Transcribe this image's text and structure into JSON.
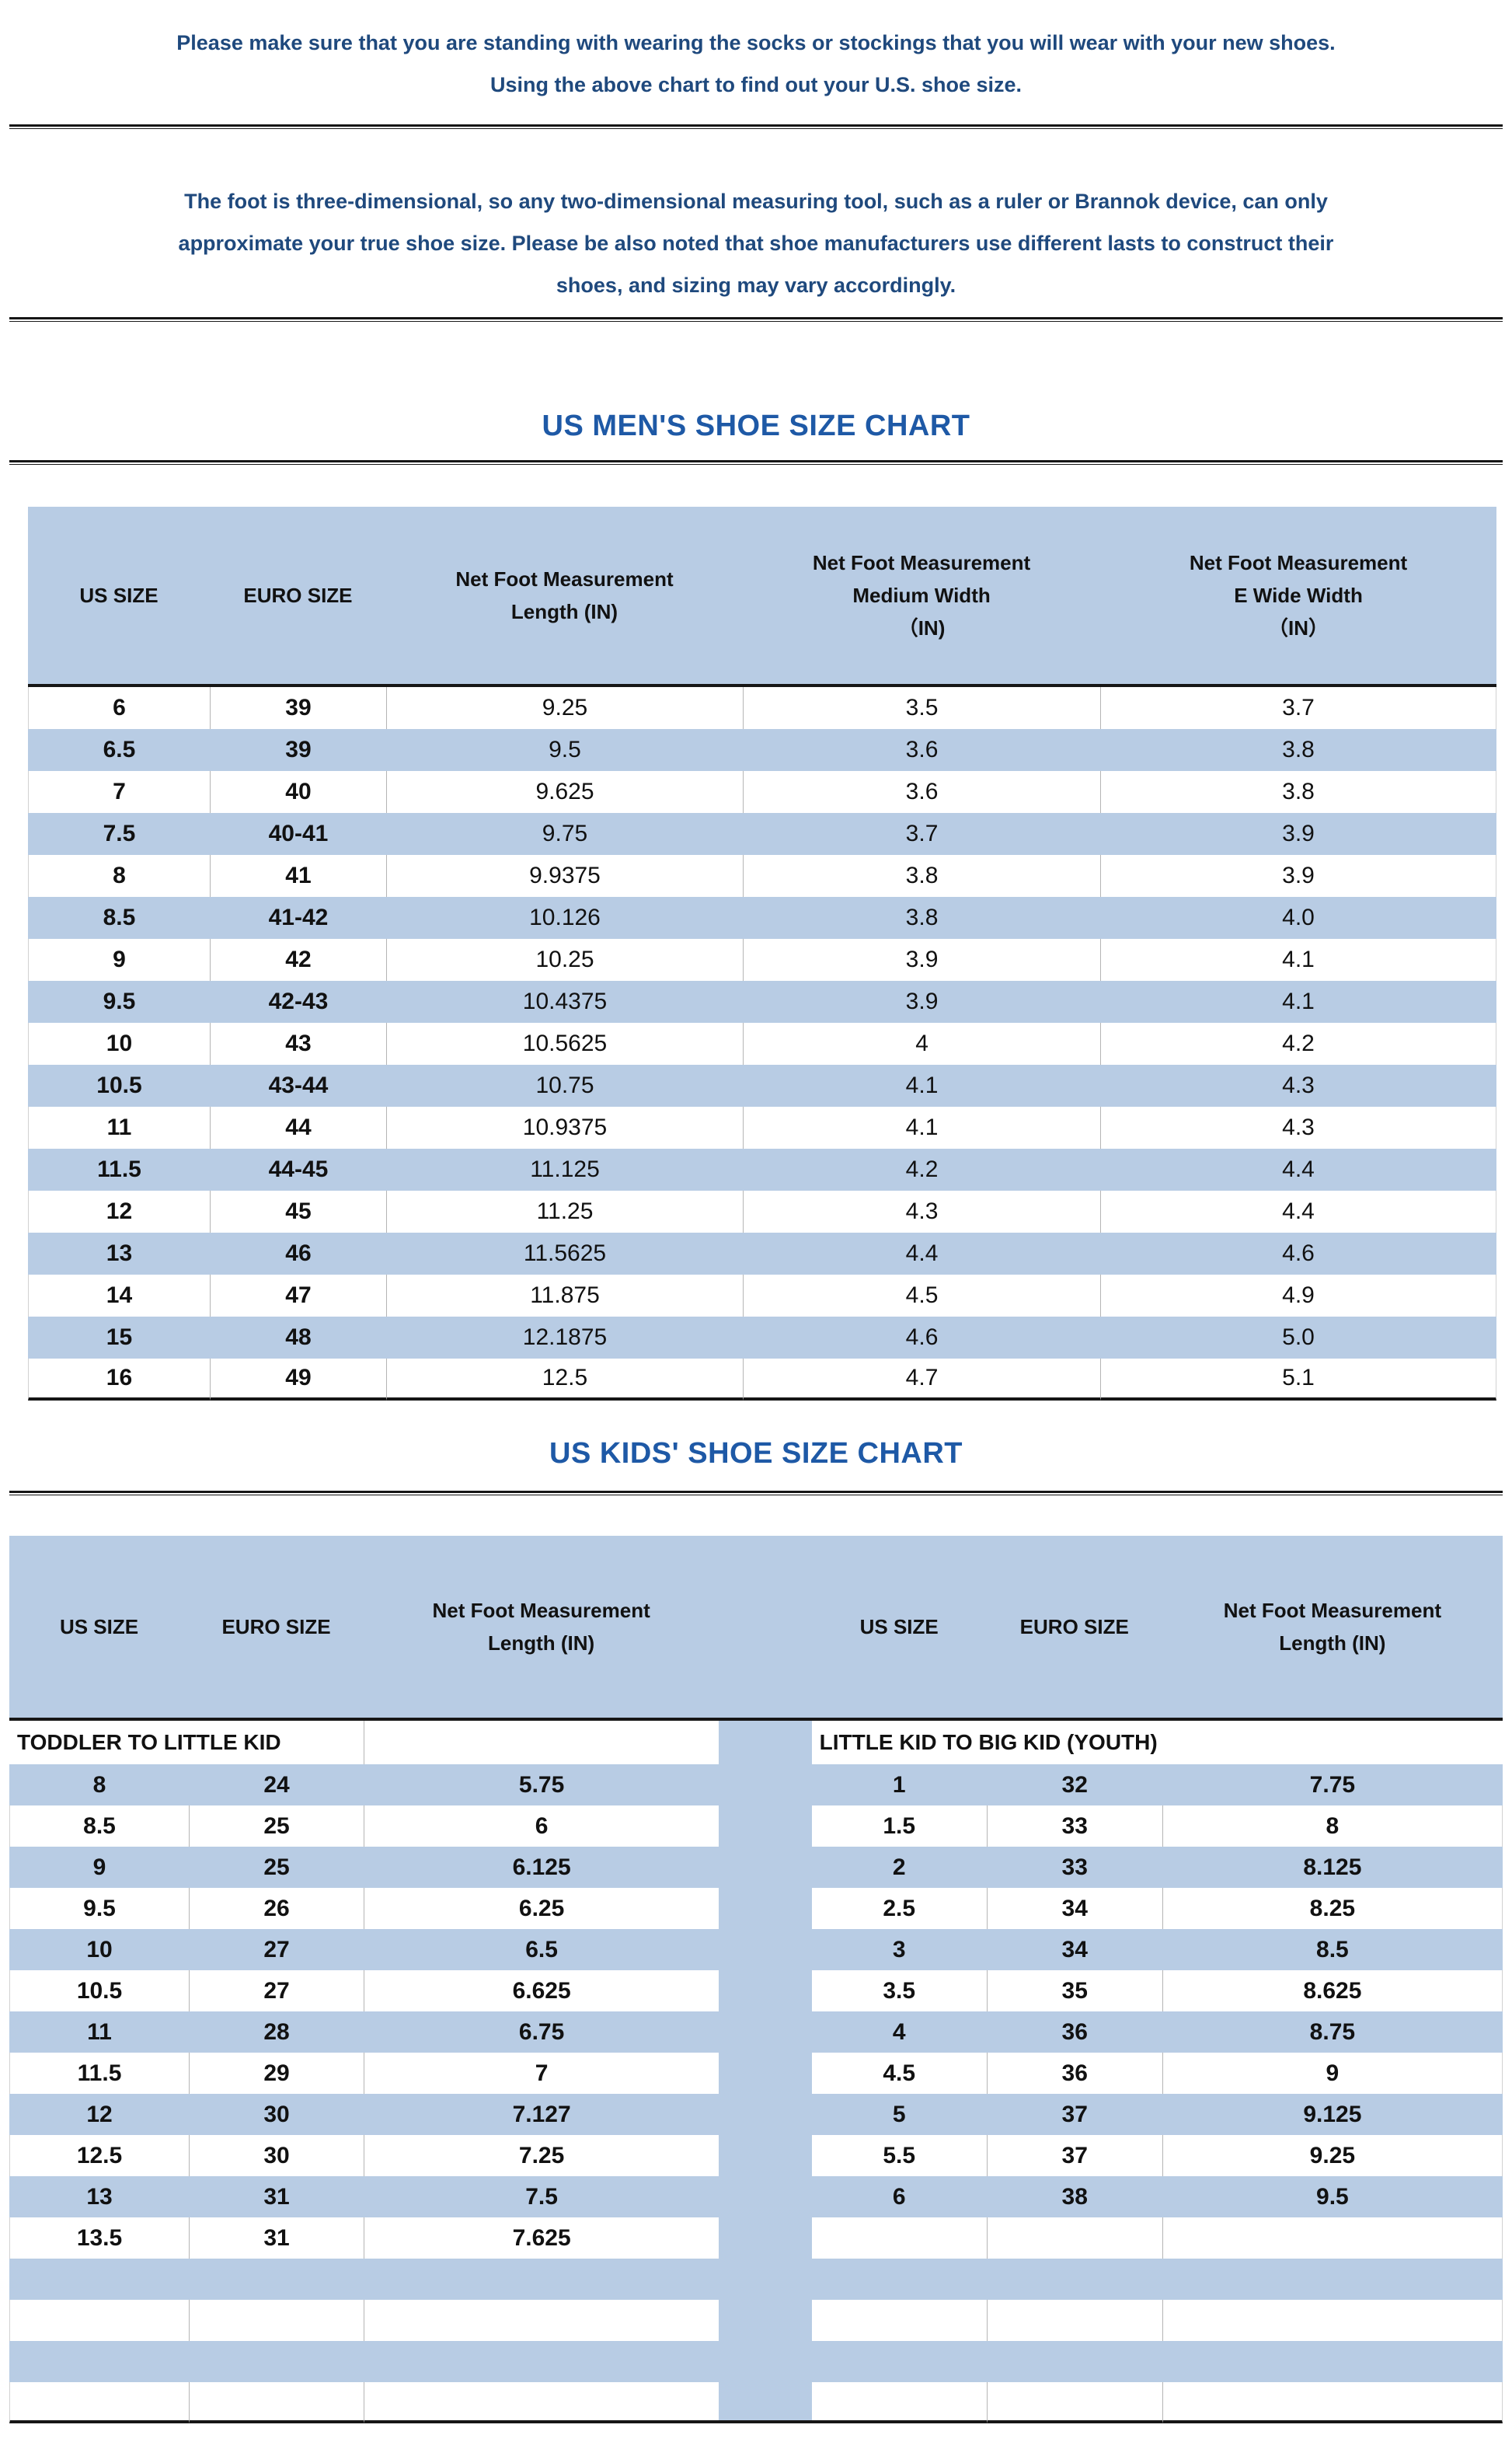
{
  "colors": {
    "text_blue": "#1F497D",
    "title_blue": "#1E59A6",
    "band_blue": "#B8CCE4",
    "border_dark": "#161616"
  },
  "intro": {
    "para1_lines": [
      "Please make sure that you are standing with wearing the socks or stockings that you will wear with your new shoes.",
      "Using the above chart to find out your U.S. shoe size."
    ],
    "para2_lines": [
      "The foot is three-dimensional, so any two-dimensional measuring tool, such as a ruler or Brannok device, can only",
      "approximate your true shoe size. Please be also noted that shoe manufacturers use different lasts to construct their",
      "shoes, and sizing may vary accordingly."
    ]
  },
  "mens_chart": {
    "title": "US MEN'S SHOE SIZE CHART",
    "columns": [
      [
        "US SIZE"
      ],
      [
        "EURO SIZE"
      ],
      [
        "Net Foot Measurement",
        "Length (IN)"
      ],
      [
        "Net Foot Measurement",
        "Medium Width",
        "（IN)"
      ],
      [
        "Net Foot Measurement",
        "E Wide Width",
        "（IN）"
      ]
    ],
    "rows": [
      [
        "6",
        "39",
        "9.25",
        "3.5",
        "3.7"
      ],
      [
        "6.5",
        "39",
        "9.5",
        "3.6",
        "3.8"
      ],
      [
        "7",
        "40",
        "9.625",
        "3.6",
        "3.8"
      ],
      [
        "7.5",
        "40-41",
        "9.75",
        "3.7",
        "3.9"
      ],
      [
        "8",
        "41",
        "9.9375",
        "3.8",
        "3.9"
      ],
      [
        "8.5",
        "41-42",
        "10.126",
        "3.8",
        "4.0"
      ],
      [
        "9",
        "42",
        "10.25",
        "3.9",
        "4.1"
      ],
      [
        "9.5",
        "42-43",
        "10.4375",
        "3.9",
        "4.1"
      ],
      [
        "10",
        "43",
        "10.5625",
        "4",
        "4.2"
      ],
      [
        "10.5",
        "43-44",
        "10.75",
        "4.1",
        "4.3"
      ],
      [
        "11",
        "44",
        "10.9375",
        "4.1",
        "4.3"
      ],
      [
        "11.5",
        "44-45",
        "11.125",
        "4.2",
        "4.4"
      ],
      [
        "12",
        "45",
        "11.25",
        "4.3",
        "4.4"
      ],
      [
        "13",
        "46",
        "11.5625",
        "4.4",
        "4.6"
      ],
      [
        "14",
        "47",
        "11.875",
        "4.5",
        "4.9"
      ],
      [
        "15",
        "48",
        "12.1875",
        "4.6",
        "5.0"
      ],
      [
        "16",
        "49",
        "12.5",
        "4.7",
        "5.1"
      ]
    ]
  },
  "kids_chart": {
    "title": "US KIDS' SHOE SIZE CHART",
    "left": {
      "group_label": "TODDLER TO LITTLE KID",
      "columns": [
        [
          "US SIZE"
        ],
        [
          "EURO SIZE"
        ],
        [
          "Net Foot Measurement",
          "Length (IN)"
        ]
      ],
      "rows": [
        [
          "8",
          "24",
          "5.75"
        ],
        [
          "8.5",
          "25",
          "6"
        ],
        [
          "9",
          "25",
          "6.125"
        ],
        [
          "9.5",
          "26",
          "6.25"
        ],
        [
          "10",
          "27",
          "6.5"
        ],
        [
          "10.5",
          "27",
          "6.625"
        ],
        [
          "11",
          "28",
          "6.75"
        ],
        [
          "11.5",
          "29",
          "7"
        ],
        [
          "12",
          "30",
          "7.127"
        ],
        [
          "12.5",
          "30",
          "7.25"
        ],
        [
          "13",
          "31",
          "7.5"
        ],
        [
          "13.5",
          "31",
          "7.625"
        ],
        [
          "",
          "",
          ""
        ],
        [
          "",
          "",
          ""
        ],
        [
          "",
          "",
          ""
        ],
        [
          "",
          "",
          ""
        ]
      ]
    },
    "right": {
      "group_label": "LITTLE KID TO BIG KID (YOUTH)",
      "columns": [
        [
          "US SIZE"
        ],
        [
          "EURO SIZE"
        ],
        [
          "Net Foot Measurement",
          "Length (IN)"
        ]
      ],
      "rows": [
        [
          "1",
          "32",
          "7.75"
        ],
        [
          "1.5",
          "33",
          "8"
        ],
        [
          "2",
          "33",
          "8.125"
        ],
        [
          "2.5",
          "34",
          "8.25"
        ],
        [
          "3",
          "34",
          "8.5"
        ],
        [
          "3.5",
          "35",
          "8.625"
        ],
        [
          "4",
          "36",
          "8.75"
        ],
        [
          "4.5",
          "36",
          "9"
        ],
        [
          "5",
          "37",
          "9.125"
        ],
        [
          "5.5",
          "37",
          "9.25"
        ],
        [
          "6",
          "38",
          "9.5"
        ],
        [
          "",
          "",
          ""
        ],
        [
          "",
          "",
          ""
        ],
        [
          "",
          "",
          ""
        ],
        [
          "",
          "",
          ""
        ],
        [
          "",
          "",
          ""
        ]
      ]
    }
  }
}
